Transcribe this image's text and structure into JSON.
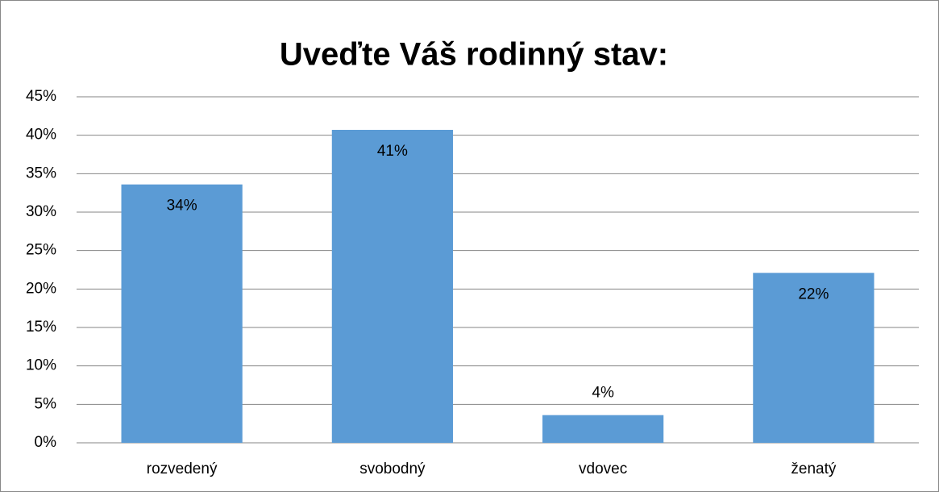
{
  "chart_data": {
    "type": "bar",
    "title": "Uveďte Váš rodinný stav:",
    "categories": [
      "rozvedený",
      "svobodný",
      "vdovec",
      "ženatý"
    ],
    "values": [
      33.6,
      40.7,
      3.6,
      22.1
    ],
    "value_labels": [
      "34%",
      "41%",
      "4%",
      "22%"
    ],
    "color": "#5b9bd5",
    "ylim": [
      0,
      45
    ],
    "yticks": [
      {
        "value": 0,
        "label": "0%"
      },
      {
        "value": 5,
        "label": "5%"
      },
      {
        "value": 10,
        "label": "10%"
      },
      {
        "value": 15,
        "label": "15%"
      },
      {
        "value": 20,
        "label": "20%"
      },
      {
        "value": 25,
        "label": "25%"
      },
      {
        "value": 30,
        "label": "30%"
      },
      {
        "value": 35,
        "label": "35%"
      },
      {
        "value": 40,
        "label": "40%"
      },
      {
        "value": 45,
        "label": "45%"
      }
    ],
    "grid": true
  }
}
